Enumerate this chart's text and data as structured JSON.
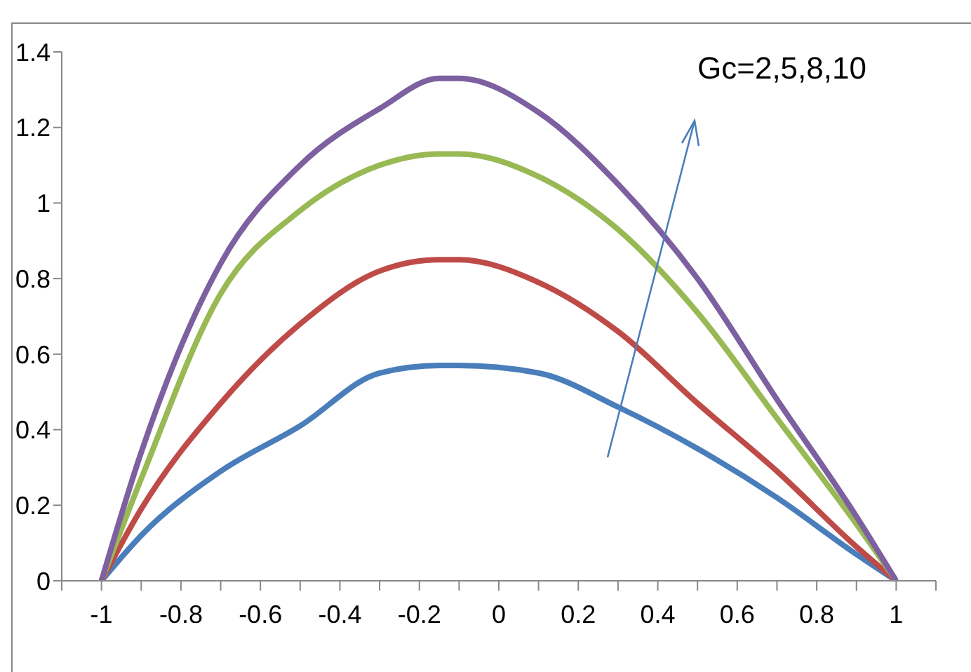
{
  "chart_data": {
    "type": "line",
    "x": [
      -1,
      -0.9,
      -0.7,
      -0.5,
      -0.3,
      -0.15,
      -0.1,
      0.1,
      0.3,
      0.5,
      0.7,
      0.9,
      1
    ],
    "series": [
      {
        "color": "#4a7ebb",
        "values": [
          0,
          0.12,
          0.29,
          0.41,
          0.55,
          0.57,
          0.57,
          0.55,
          0.46,
          0.35,
          0.22,
          0.07,
          0
        ]
      },
      {
        "color": "#be4b48",
        "values": [
          0,
          0.19,
          0.47,
          0.68,
          0.82,
          0.85,
          0.85,
          0.79,
          0.66,
          0.47,
          0.29,
          0.09,
          0
        ]
      },
      {
        "color": "#98b954",
        "values": [
          0,
          0.27,
          0.76,
          0.98,
          1.1,
          1.13,
          1.13,
          1.07,
          0.93,
          0.71,
          0.43,
          0.15,
          0
        ]
      },
      {
        "color": "#7d60a0",
        "values": [
          0,
          0.34,
          0.84,
          1.1,
          1.25,
          1.33,
          1.33,
          1.24,
          1.05,
          0.8,
          0.48,
          0.17,
          0
        ]
      }
    ],
    "xlim": [
      -1.1,
      1.1
    ],
    "xticks": [
      {
        "value": -1.1,
        "label": null
      },
      -1,
      {
        "value": -0.9,
        "label": null
      },
      -0.8,
      {
        "value": -0.7,
        "label": null
      },
      -0.6,
      {
        "value": -0.5,
        "label": null
      },
      -0.4,
      {
        "value": -0.3,
        "label": null
      },
      -0.2,
      {
        "value": -0.1,
        "label": null
      },
      0,
      {
        "value": 0.1,
        "label": null
      },
      0.2,
      {
        "value": 0.3,
        "label": null
      },
      0.4,
      {
        "value": 0.5,
        "label": null
      },
      0.6,
      {
        "value": 0.7,
        "label": null
      },
      0.8,
      {
        "value": 0.9,
        "label": null
      },
      1,
      {
        "value": 1.1,
        "label": null
      }
    ],
    "ylim": [
      0,
      1.4
    ],
    "yticks": [
      0,
      0.2,
      0.4,
      0.6,
      0.8,
      1,
      1.2,
      1.4
    ],
    "annotations": [
      "Gc=2,5,8,10"
    ]
  }
}
